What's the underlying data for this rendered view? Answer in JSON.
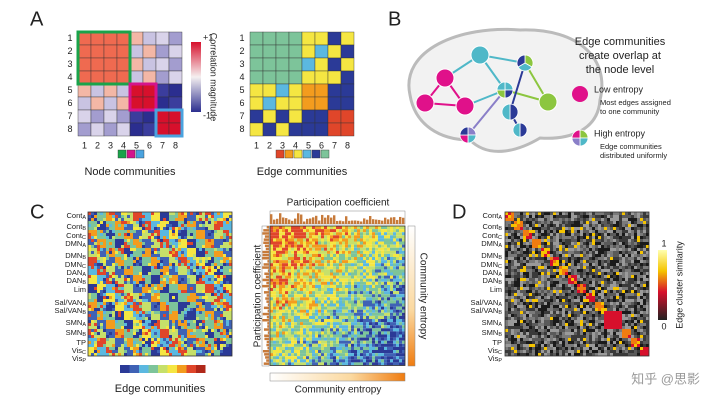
{
  "panel_a": {
    "letter": "A",
    "labels": [
      "1",
      "2",
      "3",
      "4",
      "5",
      "6",
      "7",
      "8"
    ],
    "colorbar_max": "+1",
    "colorbar_min": "-1",
    "colorbar_label": "Correlation magnitude",
    "node_legend": "Node communities",
    "edge_legend": "Edge communities"
  },
  "panel_b": {
    "letter": "B",
    "heading": [
      "Edge communities",
      "create overlap at",
      "the node level"
    ],
    "low_title": "Low entropy",
    "low_text": [
      "Most edges assigned",
      "to one community"
    ],
    "high_title": "High entropy",
    "high_text": [
      "Edge communities",
      "distributed uniformly"
    ]
  },
  "panel_c": {
    "letter": "C",
    "edge_legend": "Edge communities",
    "participation_top": "Participation coefficient",
    "participation_side": "Participation coefficient",
    "entropy_side": "Community entropy",
    "entropy_bottom": "Community entropy"
  },
  "regions": [
    {
      "name": "Cont",
      "sub": "A"
    },
    {
      "name": "Cont",
      "sub": "B"
    },
    {
      "name": "Cont",
      "sub": "C"
    },
    {
      "name": "DMN",
      "sub": "A"
    },
    {
      "name": "DMN",
      "sub": "B"
    },
    {
      "name": "DMN",
      "sub": "C"
    },
    {
      "name": "DAN",
      "sub": "A"
    },
    {
      "name": "DAN",
      "sub": "B"
    },
    {
      "name": "Lim"
    },
    {
      "name": "Sal/VAN",
      "sub": "A"
    },
    {
      "name": "Sal/VAN",
      "sub": "B"
    },
    {
      "name": "SMN",
      "sub": "A"
    },
    {
      "name": "SMN",
      "sub": "B"
    },
    {
      "name": "TP"
    },
    {
      "name": "Vis",
      "sub": "C"
    },
    {
      "name": "Vis",
      "sub": "P"
    }
  ],
  "panel_d": {
    "letter": "D",
    "scale_max": "1",
    "scale_min": "0",
    "scale_label": "Edge cluster similarity"
  },
  "watermark": "知乎 @思影"
}
